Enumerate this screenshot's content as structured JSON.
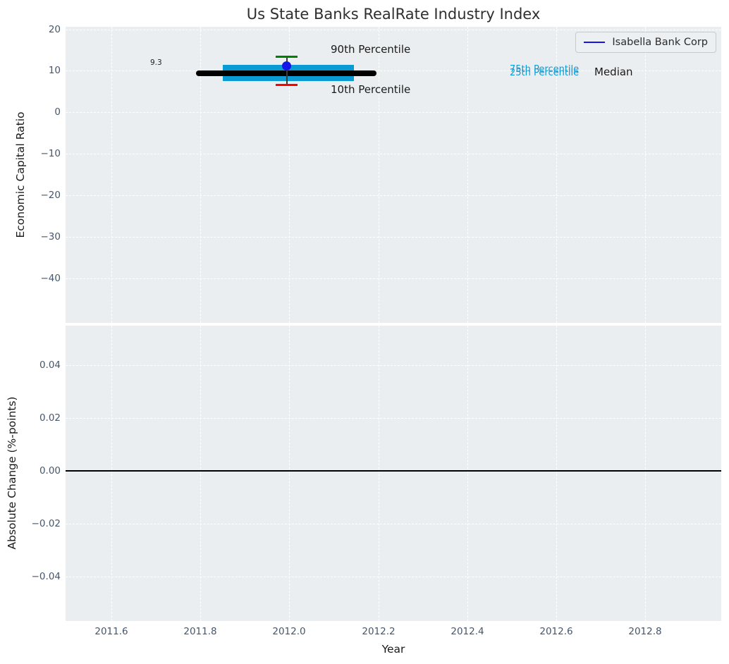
{
  "title": "Us State Banks RealRate Industry Index",
  "colors": {
    "plot_background": "#ebeef0",
    "iqr_band": "#0a9bd5",
    "median_line": "#000000",
    "p90_cap": "#008000",
    "p10_cap": "#ff0000",
    "company_marker": "#1414e6",
    "tick_label": "#46566b",
    "gridline": "#ffffff"
  },
  "legend": {
    "items": [
      {
        "label": "Isabella Bank Corp",
        "color": "#1414e6",
        "marker": "line"
      }
    ]
  },
  "top_axis": {
    "ylabel": "Economic Capital Ratio",
    "yticks": [
      "20",
      "10",
      "0",
      "−10",
      "−20",
      "−30",
      "−40"
    ],
    "annotations": {
      "median_value": "9.3",
      "p90": "90th Percentile",
      "p10": "10th Percentile",
      "p75": "75th Percentile",
      "p25": "25th Percentile",
      "median": "Median"
    }
  },
  "bottom_axis": {
    "ylabel": "Absolute Change (%-points)",
    "yticks": [
      "0.04",
      "0.02",
      "0.00",
      "−0.02",
      "−0.04"
    ]
  },
  "x_axis": {
    "label": "Year",
    "ticks": [
      "2011.6",
      "2011.8",
      "2012.0",
      "2012.2",
      "2012.4",
      "2012.6",
      "2012.8"
    ]
  },
  "chart_data": [
    {
      "type": "line",
      "title": "Us State Banks RealRate Industry Index",
      "xlabel": "Year",
      "ylabel": "Economic Capital Ratio",
      "xlim": [
        2011.5,
        2012.97
      ],
      "ylim": [
        -47,
        20
      ],
      "xticks": [
        2011.6,
        2011.8,
        2012.0,
        2012.2,
        2012.4,
        2012.6,
        2012.8
      ],
      "yticks": [
        20,
        10,
        0,
        -10,
        -20,
        -30,
        -40
      ],
      "grid": true,
      "legend_position": "upper right",
      "series": [
        {
          "name": "Isabella Bank Corp",
          "type": "scatter",
          "marker": "circle",
          "color": "#1414e6",
          "x": [
            2012.0
          ],
          "values": [
            11.2
          ]
        },
        {
          "name": "Median",
          "type": "horizontal-segment",
          "color": "#000000",
          "value": 9.3,
          "x_start": 2011.8,
          "x_end": 2012.2,
          "label": "9.3"
        },
        {
          "name": "25th-75th Percentile band",
          "type": "band",
          "color": "#0a9bd5",
          "low": 7.5,
          "high": 11.3,
          "x_start": 2011.86,
          "x_end": 2012.16
        },
        {
          "name": "90th Percentile cap",
          "type": "errorbar-cap",
          "color": "#008000",
          "x": 2012.0,
          "value": 13.3
        },
        {
          "name": "10th Percentile cap",
          "type": "errorbar-cap",
          "color": "#ff0000",
          "x": 2012.0,
          "value": 6.6
        }
      ],
      "annotations": [
        {
          "text": "9.3",
          "x": 2011.72,
          "y": 9.7
        },
        {
          "text": "90th Percentile",
          "x": 2012.1,
          "y": 14.2,
          "color": "#1a1a1a"
        },
        {
          "text": "10th Percentile",
          "x": 2012.1,
          "y": 5.0,
          "color": "#1a1a1a"
        },
        {
          "text": "75th Percentile",
          "x": 2012.52,
          "y": 9.6,
          "color": "#0a9bd5"
        },
        {
          "text": "25th Percentile",
          "x": 2012.52,
          "y": 9.0,
          "color": "#0a9bd5"
        },
        {
          "text": "Median",
          "x": 2012.71,
          "y": 9.4,
          "color": "#1a1a1a"
        }
      ]
    },
    {
      "type": "line",
      "xlabel": "Year",
      "ylabel": "Absolute Change (%-points)",
      "xlim": [
        2011.5,
        2012.97
      ],
      "ylim": [
        -0.057,
        0.057
      ],
      "xticks": [
        2011.6,
        2011.8,
        2012.0,
        2012.2,
        2012.4,
        2012.6,
        2012.8
      ],
      "yticks": [
        0.04,
        0.02,
        0.0,
        -0.02,
        -0.04
      ],
      "grid": true,
      "series": [
        {
          "name": "zero reference line",
          "type": "hline",
          "color": "#000000",
          "value": 0.0
        }
      ]
    }
  ]
}
